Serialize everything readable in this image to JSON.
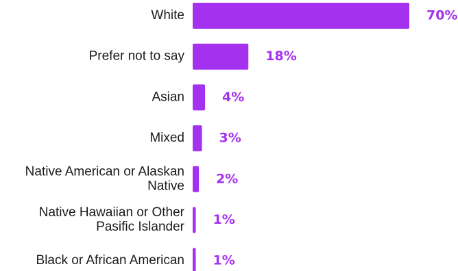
{
  "chart_data": {
    "type": "bar",
    "orientation": "horizontal",
    "categories": [
      [
        "White"
      ],
      [
        "Prefer not to say"
      ],
      [
        "Asian"
      ],
      [
        "Mixed"
      ],
      [
        "Native American or Alaskan",
        "Native"
      ],
      [
        "Native Hawaiian or Other",
        "Pasific Islander"
      ],
      [
        "Black or African American"
      ]
    ],
    "values": [
      70,
      18,
      4,
      3,
      2,
      1,
      1
    ],
    "value_labels": [
      "70%",
      "18%",
      "4%",
      "3%",
      "2%",
      "1%",
      "1%"
    ],
    "xlim": [
      0,
      70
    ],
    "grid": false,
    "legend": "none",
    "title": "",
    "xlabel": "",
    "ylabel": ""
  },
  "colors": {
    "bar": "#a431f0",
    "value_text": "#a431f0",
    "label_text": "#1a1a1a"
  }
}
